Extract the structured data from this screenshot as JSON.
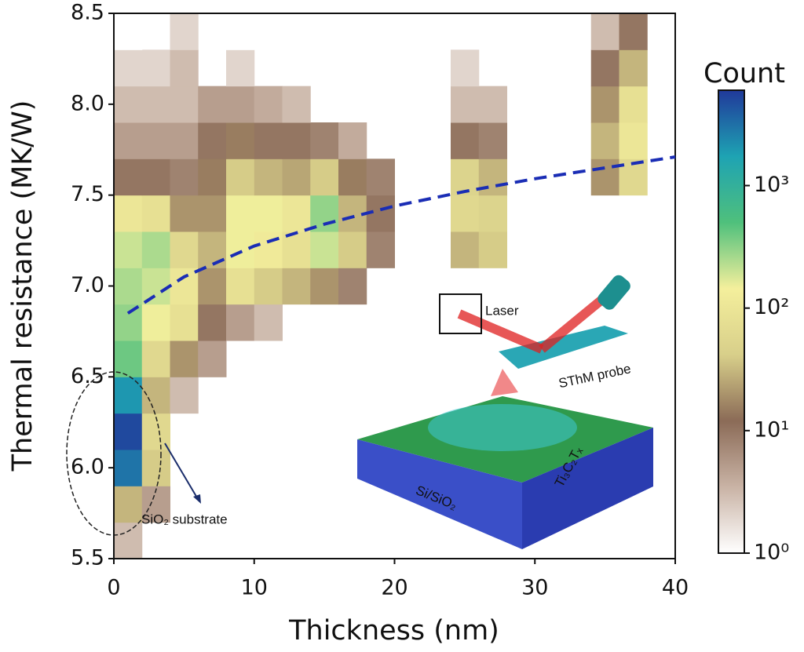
{
  "chart_data": {
    "type": "heatmap",
    "xlabel": "Thickness (nm)",
    "ylabel": "Thermal resistance (MK/W)",
    "xlim": [
      0,
      40
    ],
    "ylim": [
      5.5,
      8.5
    ],
    "xticks": [
      0,
      10,
      20,
      30,
      40
    ],
    "yticks": [
      5.5,
      {
        "value": 6,
        "label": "6.0"
      },
      6.5,
      {
        "value": 7,
        "label": "7.0"
      },
      7.5,
      {
        "value": 8,
        "label": "8.0"
      },
      8.5
    ],
    "xbins": [
      0,
      2,
      4,
      6,
      8,
      10,
      12,
      14,
      16,
      18,
      20,
      22,
      24,
      26,
      28,
      30,
      32,
      34,
      36,
      38,
      40
    ],
    "ybins": [
      5.5,
      5.7,
      5.9,
      6.1,
      6.3,
      6.5,
      6.7,
      6.9,
      7.1,
      7.3,
      7.5,
      7.7,
      7.9,
      8.1,
      8.3,
      8.5
    ],
    "counts": [
      [
        3,
        0,
        0,
        0,
        0,
        0,
        0,
        0,
        0,
        0,
        0,
        0,
        0,
        0,
        0,
        0,
        0,
        0,
        0,
        0
      ],
      [
        30,
        5,
        0,
        0,
        0,
        0,
        0,
        0,
        0,
        0,
        0,
        0,
        0,
        0,
        0,
        0,
        0,
        0,
        0,
        0
      ],
      [
        3000,
        40,
        0,
        0,
        0,
        0,
        0,
        0,
        0,
        0,
        0,
        0,
        0,
        0,
        0,
        0,
        0,
        0,
        0,
        0
      ],
      [
        5000,
        60,
        0,
        0,
        0,
        0,
        0,
        0,
        0,
        0,
        0,
        0,
        0,
        0,
        0,
        0,
        0,
        0,
        0,
        0
      ],
      [
        2000,
        30,
        3,
        0,
        0,
        0,
        0,
        0,
        0,
        0,
        0,
        0,
        0,
        0,
        0,
        0,
        0,
        0,
        0,
        0
      ],
      [
        400,
        60,
        20,
        5,
        0,
        0,
        0,
        0,
        0,
        0,
        0,
        0,
        0,
        0,
        0,
        0,
        0,
        0,
        0,
        0
      ],
      [
        300,
        150,
        80,
        10,
        5,
        3,
        0,
        0,
        0,
        0,
        0,
        0,
        0,
        0,
        0,
        0,
        0,
        0,
        0,
        0
      ],
      [
        250,
        200,
        100,
        20,
        80,
        40,
        30,
        20,
        8,
        0,
        0,
        0,
        0,
        0,
        0,
        0,
        0,
        0,
        0,
        0
      ],
      [
        200,
        250,
        60,
        30,
        150,
        120,
        80,
        200,
        40,
        8,
        0,
        0,
        30,
        40,
        0,
        0,
        0,
        0,
        0,
        0
      ],
      [
        100,
        80,
        20,
        20,
        150,
        150,
        100,
        300,
        30,
        10,
        0,
        0,
        60,
        50,
        0,
        0,
        0,
        0,
        0,
        0
      ],
      [
        10,
        10,
        8,
        15,
        40,
        30,
        25,
        40,
        15,
        8,
        0,
        0,
        50,
        30,
        0,
        0,
        0,
        20,
        60,
        0
      ],
      [
        5,
        5,
        5,
        10,
        15,
        10,
        10,
        8,
        4,
        0,
        0,
        0,
        10,
        8,
        0,
        0,
        0,
        30,
        100,
        0
      ],
      [
        3,
        3,
        3,
        5,
        5,
        4,
        3,
        0,
        0,
        0,
        0,
        0,
        3,
        3,
        0,
        0,
        0,
        20,
        80,
        0
      ],
      [
        2,
        2,
        3,
        0,
        2,
        0,
        0,
        0,
        0,
        0,
        0,
        0,
        2,
        0,
        0,
        0,
        0,
        10,
        30,
        0
      ],
      [
        1,
        0,
        2,
        0,
        1,
        0,
        0,
        0,
        0,
        0,
        0,
        0,
        0,
        0,
        0,
        0,
        0,
        3,
        10,
        0
      ]
    ],
    "colorbar": {
      "label": "Count",
      "log": true,
      "lim": [
        1,
        6000
      ],
      "ticks": [
        {
          "value": 1,
          "label": "10⁰"
        },
        {
          "value": 10,
          "label": "10¹"
        },
        {
          "value": 100,
          "label": "10²"
        },
        {
          "value": 1000,
          "label": "10³"
        }
      ],
      "colormap": [
        "#ffffff",
        "#c9b3a5",
        "#8b6b57",
        "#d8cf8a",
        "#f4ef9c",
        "#4fc07c",
        "#1ea3b3",
        "#20399a"
      ]
    },
    "fit": {
      "x": [
        1,
        5,
        10,
        15,
        20,
        25,
        30,
        35,
        40
      ],
      "values": [
        6.85,
        7.05,
        7.22,
        7.34,
        7.44,
        7.52,
        7.59,
        7.65,
        7.71
      ],
      "color": "#1a2db5",
      "dashed": true
    },
    "annotation": "SiO₂ substrate",
    "inset_labels": {
      "laser": "Laser",
      "probe": "SThM probe",
      "substrate": "Si/SiO₂",
      "film": "Ti₃C₂Tₓ"
    }
  }
}
